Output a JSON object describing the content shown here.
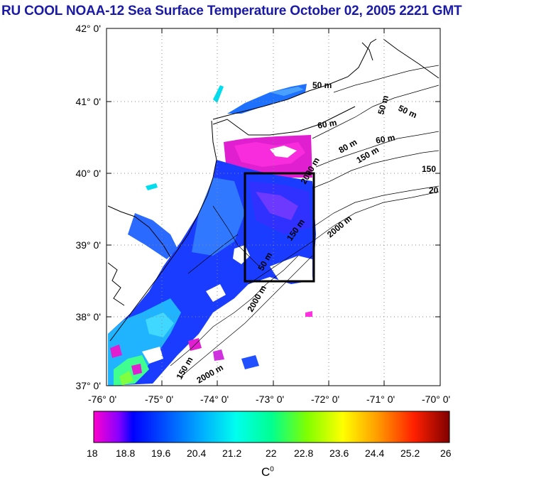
{
  "title": "RU COOL  NOAA-12 Sea Surface Temperature October 02, 2005 2221 GMT",
  "latitude_labels": [
    "42° 0'",
    "41° 0'",
    "40° 0'",
    "39° 0'",
    "38° 0'",
    "37° 0'"
  ],
  "longitude_labels": [
    "-76° 0'",
    "-75° 0'",
    "-74° 0'",
    "-73° 0'",
    "-72° 0'",
    "-71° 0'",
    "-70° 0'"
  ],
  "colorbar": {
    "ticks": [
      "18",
      "18.8",
      "19.6",
      "20.4",
      "21.2",
      "22",
      "22.8",
      "23.6",
      "24.4",
      "25.2",
      "26"
    ],
    "unit_base": "C",
    "unit_sup": "0",
    "colors": [
      "#ff00cc",
      "#0000ff",
      "#0050ff",
      "#00aaff",
      "#00ffee",
      "#00ff90",
      "#80ff00",
      "#ffff00",
      "#ff9900",
      "#ff2000",
      "#800000"
    ]
  },
  "isobath_labels": [
    "50 m",
    "50 m",
    "50 m",
    "60 m",
    "80 m",
    "150 m",
    "150",
    "60 m",
    "20",
    "2000 m",
    "150 m",
    "2000 m",
    "50 m",
    "2000 m",
    "150 m",
    "2000 m"
  ],
  "study_box": {
    "lat_min": 38.5,
    "lat_max": 40.0,
    "lon_min": -73.5,
    "lon_max": -72.25
  }
}
